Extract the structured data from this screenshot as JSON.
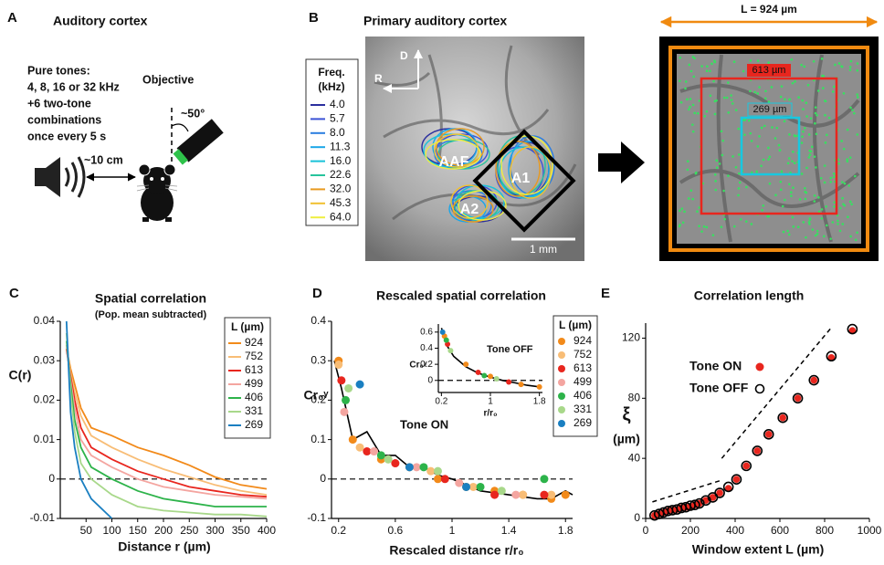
{
  "panels": {
    "a": {
      "letter": "A",
      "title": "Auditory cortex",
      "stimulus": [
        "Pure tones:",
        "4, 8, 16 or 32 kHz",
        "+6 two-tone",
        "combinations",
        "once every 5 s"
      ],
      "objective": "Objective",
      "angle": "~50°",
      "distance": "~10 cm"
    },
    "b": {
      "letter": "B",
      "title": "Primary auditory cortex",
      "legend_title": [
        "Freq.",
        "(kHz)"
      ],
      "legend": [
        {
          "label": "4.0",
          "color": "#2b2f9e"
        },
        {
          "label": "5.7",
          "color": "#3b52d6"
        },
        {
          "label": "8.0",
          "color": "#2a7de0"
        },
        {
          "label": "11.3",
          "color": "#1aa6e8"
        },
        {
          "label": "16.0",
          "color": "#18c2d8"
        },
        {
          "label": "22.6",
          "color": "#27c49c"
        },
        {
          "label": "32.0",
          "color": "#e89a20"
        },
        {
          "label": "45.3",
          "color": "#f0c030"
        },
        {
          "label": "64.0",
          "color": "#eeee40"
        }
      ],
      "axes": [
        "D",
        "R"
      ],
      "areas": [
        "AAF",
        "A1",
        "A2"
      ],
      "scale_bar": "1 mm",
      "window": "L = 924 µm",
      "windows": [
        "613 µm",
        "269 µm"
      ]
    }
  },
  "chart_data": [
    {
      "type": "line",
      "panel_label": "C",
      "title": "Spatial correlation",
      "subtitle": "(Pop. mean subtracted)",
      "x_label": "Distance r (µm)",
      "y_label": "C(r)",
      "legend_title": "L (µm)",
      "x": [
        12,
        20,
        28,
        40,
        60,
        100,
        150,
        200,
        250,
        300,
        350,
        400
      ],
      "series": [
        {
          "name": "924",
          "color": "#f28a1a",
          "values": [
            0.033,
            0.028,
            0.024,
            0.018,
            0.013,
            0.011,
            0.008,
            0.006,
            0.0035,
            0.0005,
            -0.0015,
            -0.0025
          ]
        },
        {
          "name": "752",
          "color": "#f8bd76",
          "values": [
            0.033,
            0.027,
            0.022,
            0.016,
            0.011,
            0.008,
            0.005,
            0.0025,
            0.0005,
            -0.0015,
            -0.003,
            -0.004
          ]
        },
        {
          "name": "613",
          "color": "#e8261e",
          "values": [
            0.033,
            0.026,
            0.02,
            0.013,
            0.008,
            0.005,
            0.002,
            0,
            -0.002,
            -0.003,
            -0.004,
            -0.0045
          ]
        },
        {
          "name": "499",
          "color": "#f4a5a0",
          "values": [
            0.034,
            0.025,
            0.018,
            0.01,
            0.006,
            0.003,
            0,
            -0.002,
            -0.003,
            -0.004,
            -0.0045,
            -0.005
          ]
        },
        {
          "name": "406",
          "color": "#2db34a",
          "values": [
            0.035,
            0.024,
            0.015,
            0.008,
            0.003,
            0,
            -0.003,
            -0.005,
            -0.006,
            -0.007,
            -0.007,
            -0.007
          ]
        },
        {
          "name": "331",
          "color": "#a8d88a",
          "values": [
            0.037,
            0.022,
            0.012,
            0.004,
            0,
            -0.004,
            -0.007,
            -0.008,
            -0.0085,
            -0.009,
            -0.009,
            -0.0095
          ]
        },
        {
          "name": "269",
          "color": "#1a7fc1",
          "values": [
            0.04,
            0.017,
            0.008,
            0,
            -0.005,
            -0.01,
            null,
            null,
            null,
            null,
            null,
            null
          ]
        }
      ],
      "xlim": [
        0,
        400
      ],
      "ylim": [
        -0.01,
        0.04
      ],
      "xticks": [
        50,
        100,
        150,
        200,
        250,
        300,
        350,
        400
      ],
      "yticks": [
        -0.01,
        0,
        0.01,
        0.02,
        0.03,
        0.04
      ],
      "hline": 0
    },
    {
      "type": "scatter",
      "panel_label": "D",
      "title": "Rescaled spatial correlation",
      "x_label": "Rescaled distance r/r₀",
      "y_label": "Cr₀ᵞ",
      "legend_title": "L (µm)",
      "annotation": "Tone ON",
      "series": [
        {
          "name": "924",
          "color": "#f28a1a",
          "x": [
            0.2,
            0.3,
            0.5,
            0.7,
            0.9,
            1.1,
            1.3,
            1.5,
            1.7,
            1.8
          ],
          "values": [
            0.3,
            0.1,
            0.05,
            0.03,
            0,
            -0.02,
            -0.03,
            -0.04,
            -0.05,
            -0.04
          ]
        },
        {
          "name": "752",
          "color": "#f8bd76",
          "x": [
            0.2,
            0.35,
            0.55,
            0.85,
            1.15,
            1.5,
            1.7
          ],
          "values": [
            0.29,
            0.08,
            0.05,
            0.02,
            -0.02,
            -0.04,
            -0.04
          ]
        },
        {
          "name": "613",
          "color": "#e8261e",
          "x": [
            0.22,
            0.4,
            0.6,
            0.95,
            1.3,
            1.65
          ],
          "values": [
            0.25,
            0.07,
            0.04,
            0,
            -0.04,
            -0.04
          ]
        },
        {
          "name": "499",
          "color": "#f4a5a0",
          "x": [
            0.24,
            0.45,
            0.75,
            1.05,
            1.45
          ],
          "values": [
            0.17,
            0.07,
            0.03,
            -0.01,
            -0.04
          ]
        },
        {
          "name": "406",
          "color": "#2db34a",
          "x": [
            0.25,
            0.5,
            0.8,
            1.2,
            1.65
          ],
          "values": [
            0.2,
            0.06,
            0.03,
            -0.02,
            0
          ]
        },
        {
          "name": "331",
          "color": "#a8d88a",
          "x": [
            0.27,
            0.55,
            0.9,
            1.35
          ],
          "values": [
            0.23,
            0.05,
            0.02,
            -0.03
          ]
        },
        {
          "name": "269",
          "color": "#1a7fc1",
          "x": [
            0.35,
            0.7,
            1.1
          ],
          "values": [
            0.24,
            0.03,
            -0.02
          ]
        }
      ],
      "fit": {
        "color": "#000000",
        "x": [
          0.17,
          0.22,
          0.3,
          0.4,
          0.5,
          0.6,
          0.7,
          0.8,
          0.9,
          1.0,
          1.2,
          1.4,
          1.6,
          1.7,
          1.8,
          1.85
        ],
        "values": [
          0.3,
          0.23,
          0.1,
          0.12,
          0.06,
          0.06,
          0.03,
          0.03,
          0.01,
          0,
          -0.03,
          -0.04,
          -0.05,
          -0.05,
          -0.03,
          -0.04
        ]
      },
      "xlim": [
        0.15,
        1.85
      ],
      "ylim": [
        -0.1,
        0.4
      ],
      "xticks": [
        0.2,
        0.6,
        1,
        1.4,
        1.8
      ],
      "yticks": [
        -0.1,
        0,
        0.1,
        0.2,
        0.3,
        0.4
      ],
      "hline": 0
    },
    {
      "type": "scatter",
      "x_label": "r/r₀",
      "y_label": "Cr₀ᵞ",
      "annotation": "Tone OFF",
      "series": [
        {
          "color": "#f28a1a",
          "x": [
            0.25,
            0.6,
            1.0,
            1.5,
            1.8
          ],
          "values": [
            0.55,
            0.2,
            0.05,
            -0.05,
            -0.08
          ]
        },
        {
          "color": "#e8261e",
          "x": [
            0.3,
            0.8,
            1.3
          ],
          "values": [
            0.45,
            0.1,
            -0.02
          ]
        },
        {
          "color": "#2db34a",
          "x": [
            0.28,
            0.9
          ],
          "values": [
            0.5,
            0.06
          ]
        },
        {
          "color": "#a8d88a",
          "x": [
            0.35,
            1.1
          ],
          "values": [
            0.37,
            0.02
          ]
        },
        {
          "color": "#1a7fc1",
          "x": [
            0.22
          ],
          "values": [
            0.6
          ]
        }
      ],
      "fit": {
        "color": "#000000",
        "x": [
          0.2,
          0.3,
          0.4,
          0.6,
          0.8,
          1.0,
          1.2,
          1.4,
          1.6,
          1.8
        ],
        "values": [
          0.65,
          0.42,
          0.3,
          0.17,
          0.09,
          0.04,
          0,
          -0.03,
          -0.06,
          -0.08
        ]
      },
      "xlim": [
        0.15,
        1.85
      ],
      "ylim": [
        -0.15,
        0.7
      ],
      "xticks": [
        0.2,
        1,
        1.8
      ],
      "yticks": [
        0,
        0.2,
        0.4,
        0.6
      ],
      "hline": 0
    },
    {
      "type": "scatter",
      "panel_label": "E",
      "title": "Correlation length",
      "x_label": "Window extent L (µm)",
      "y_label": "ξ",
      "y_unit": "(µm)",
      "x": [
        40,
        60,
        80,
        100,
        120,
        140,
        160,
        180,
        200,
        220,
        240,
        269,
        300,
        331,
        370,
        406,
        450,
        499,
        550,
        613,
        680,
        752,
        830,
        924
      ],
      "series": [
        {
          "name": "Tone ON",
          "color": "#e8261e",
          "filled": true,
          "values": [
            2,
            3,
            4,
            5,
            5.5,
            6,
            7,
            7.5,
            8,
            9,
            10,
            12,
            14,
            17,
            20,
            26,
            35,
            45,
            56,
            67,
            80,
            92,
            107,
            125
          ]
        },
        {
          "name": "Tone OFF",
          "color": "#000000",
          "filled": false,
          "values": [
            2,
            3,
            4,
            5,
            5.5,
            6,
            7,
            7.5,
            8.5,
            9,
            10,
            12,
            14,
            17,
            21,
            26,
            35,
            45,
            56,
            67,
            80,
            92,
            108,
            126
          ]
        }
      ],
      "guides": [
        {
          "x": [
            30,
            330
          ],
          "values": [
            11,
            25
          ]
        },
        {
          "x": [
            340,
            830
          ],
          "values": [
            40,
            127
          ]
        }
      ],
      "xlim": [
        0,
        1000
      ],
      "ylim": [
        0,
        130
      ],
      "xticks": [
        0,
        200,
        400,
        600,
        800,
        1000
      ],
      "yticks": [
        0,
        40,
        80,
        120
      ]
    }
  ]
}
